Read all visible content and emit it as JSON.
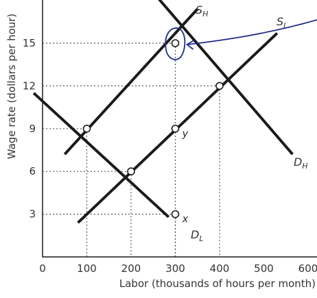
{
  "chart_data": {
    "type": "line",
    "title": "",
    "xlabel": "Labor (thousands of hours per month)",
    "ylabel": "Wage rate (dollars per hour)",
    "xlim": [
      0,
      640
    ],
    "ylim": [
      0,
      18
    ],
    "x_ticks": [
      "0",
      "100",
      "200",
      "300",
      "400",
      "500",
      "600"
    ],
    "y_ticks": [
      "3",
      "6",
      "9",
      "12",
      "15"
    ],
    "series": [
      {
        "name": "S_H",
        "label_main": "S",
        "label_sub": "H",
        "points": [
          [
            50,
            7.2
          ],
          [
            350,
            17.4
          ]
        ]
      },
      {
        "name": "S_L",
        "label_main": "S",
        "label_sub": "L",
        "points": [
          [
            80,
            2.4
          ],
          [
            530,
            15.7
          ]
        ]
      },
      {
        "name": "D_H",
        "label_main": "D",
        "label_sub": "H",
        "points": [
          [
            260,
            18.2
          ],
          [
            565,
            7.2
          ]
        ]
      },
      {
        "name": "D_L",
        "label_main": "D",
        "label_sub": "L",
        "points": [
          [
            -20,
            11.5
          ],
          [
            285,
            2.8
          ]
        ]
      }
    ],
    "points": [
      {
        "x": 100,
        "y": 9,
        "label": ""
      },
      {
        "x": 200,
        "y": 6,
        "label": ""
      },
      {
        "x": 400,
        "y": 12,
        "label": ""
      },
      {
        "x": 300,
        "y": 15,
        "label": ""
      },
      {
        "x": 300,
        "y": 9,
        "label": "y"
      },
      {
        "x": 300,
        "y": 3,
        "label": "x"
      }
    ],
    "dotted_guides": [
      {
        "x": 100,
        "y": 9
      },
      {
        "x": 200,
        "y": 6
      },
      {
        "x": 300,
        "y": 15
      },
      {
        "x": 400,
        "y": 12
      },
      {
        "x": 300,
        "y": 3
      }
    ],
    "grid": false,
    "legend": "none",
    "annotation": {
      "type": "hand-drawn circle with arrow",
      "target": {
        "x": 300,
        "y": 15
      },
      "color": "#1f2a8a"
    }
  }
}
